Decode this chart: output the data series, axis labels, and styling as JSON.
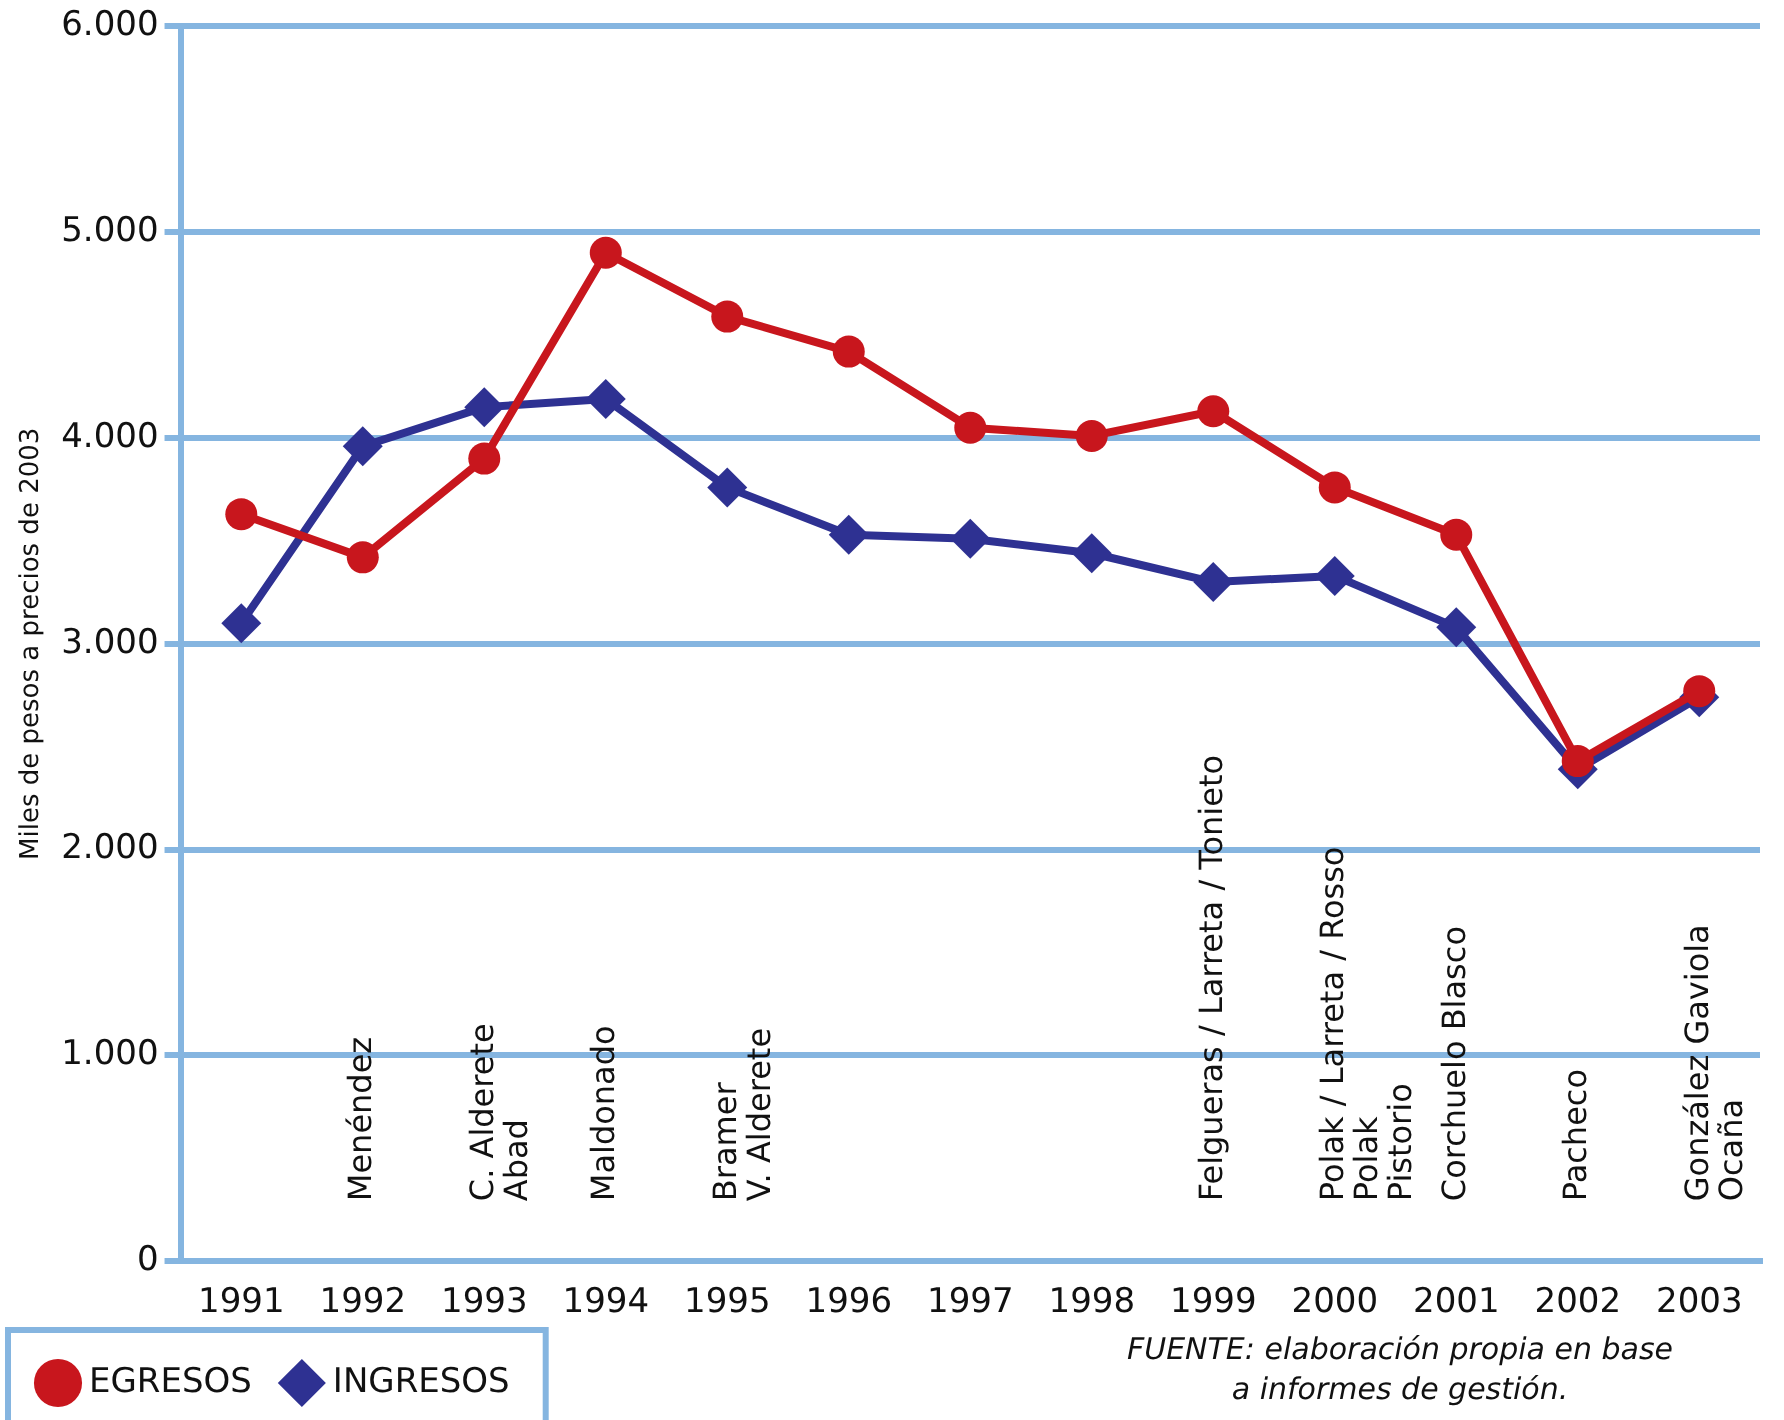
{
  "chart_data": {
    "type": "line",
    "ylabel": "Miles de pesos a precios de 2003",
    "categories": [
      "1991",
      "1992",
      "1993",
      "1994",
      "1995",
      "1996",
      "1997",
      "1998",
      "1999",
      "2000",
      "2001",
      "2002",
      "2003"
    ],
    "series": [
      {
        "name": "INGRESOS",
        "color": "#2e3192",
        "marker": "diamond",
        "values": [
          3100,
          3960,
          4150,
          4190,
          3760,
          3530,
          3510,
          3440,
          3300,
          3330,
          3080,
          2390,
          2740
        ]
      },
      {
        "name": "EGRESOS",
        "color": "#c8161d",
        "marker": "circle",
        "values": [
          3630,
          3420,
          3900,
          4900,
          4590,
          4420,
          4050,
          4010,
          4130,
          3760,
          3530,
          2430,
          2770
        ]
      }
    ],
    "ylim": [
      0,
      6000
    ],
    "yticks": [
      0,
      {
        "value": 1000,
        "label": "1.000"
      },
      {
        "value": 2000,
        "label": "2.000"
      },
      {
        "value": 3000,
        "label": "3.000"
      },
      {
        "value": 4000,
        "label": "4.000"
      },
      {
        "value": 5000,
        "label": "5.000"
      },
      {
        "value": 6000,
        "label": "6.000"
      }
    ],
    "grid": "y",
    "legend": "bottom left",
    "line_style": "solid",
    "annotations": [
      "Menéndez",
      "C. Alderete\nAbad",
      "Maldonado",
      "Bramer\nV. Alderete",
      "Felgueras / Larreta / Tonieto",
      "Polak / Larreta / Rosso\nPolak\nPistorio",
      "Corchuelo Blasco",
      "Pacheco",
      "González Gaviola\nOcaña",
      "FUENTE: elaboración propia en base\na informes de gestión."
    ]
  }
}
